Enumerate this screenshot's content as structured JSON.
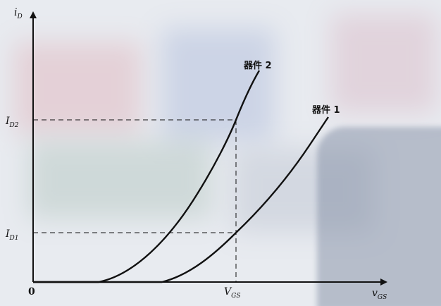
{
  "axes": {
    "y_label": "i",
    "y_label_sub": "D",
    "x_label": "v",
    "x_label_sub": "GS",
    "origin": "0"
  },
  "ticks": {
    "id2_main": "I",
    "id2_sub": "D2",
    "id1_main": "I",
    "id1_sub": "D1",
    "vgs_main": "V",
    "vgs_sub": "GS"
  },
  "curves": {
    "device2": "器件 2",
    "device1": "器件 1"
  },
  "colors": {
    "ink": "#111111",
    "backdrop": "#d9dde6"
  }
}
